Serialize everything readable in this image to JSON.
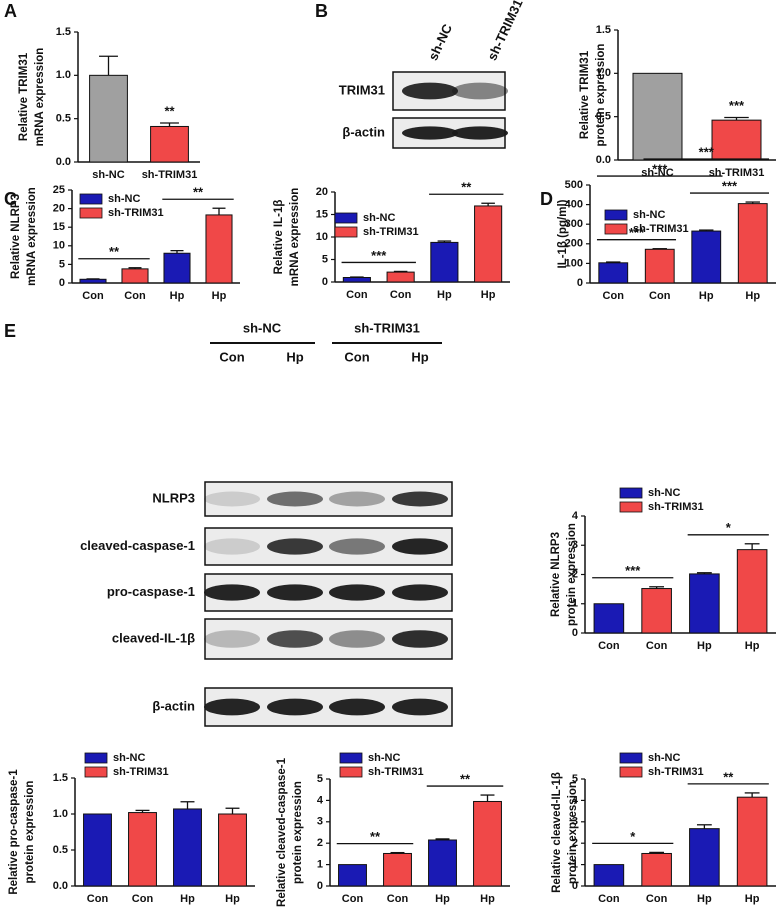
{
  "panel_labels": [
    "A",
    "B",
    "C",
    "D",
    "E"
  ],
  "blot_b": {
    "columns": [
      "sh-NC",
      "sh-TRIM31"
    ],
    "rows": [
      "TRIM31",
      "β-actin"
    ]
  },
  "blot_e": {
    "groups": [
      "sh-NC",
      "sh-TRIM31"
    ],
    "lanes": [
      "Con",
      "Hp",
      "Con",
      "Hp"
    ],
    "rows": [
      "NLRP3",
      "cleaved-caspase-1",
      "pro-caspase-1",
      "cleaved-IL-1β",
      "β-actin"
    ]
  },
  "chart_data": [
    {
      "type": "bar",
      "ylabel": [
        "Relative TRIM31",
        "mRNA expression"
      ],
      "categories": [
        "sh-NC",
        "sh-TRIM31"
      ],
      "values": [
        1.0,
        0.41
      ],
      "errors": [
        0.22,
        0.04
      ],
      "colors": [
        "#a0a0a0",
        "#f04848"
      ],
      "ylim": [
        0,
        1.5
      ],
      "yticks": [
        {
          "value": 0,
          "label": "0.0"
        },
        {
          "value": 0.5,
          "label": "0.5"
        },
        {
          "value": 1,
          "label": "1.0"
        },
        {
          "value": 1.5,
          "label": "1.5"
        }
      ],
      "brackets": [
        {
          "from": 1,
          "to": 1,
          "label": "**"
        }
      ]
    },
    {
      "type": "bar",
      "ylabel": [
        "Relative TRIM31",
        "protein expression"
      ],
      "categories": [
        "sh-NC",
        "sh-TRIM31"
      ],
      "values": [
        1.0,
        0.46
      ],
      "errors": [
        0,
        0.03
      ],
      "colors": [
        "#a0a0a0",
        "#f04848"
      ],
      "ylim": [
        0,
        1.5
      ],
      "yticks": [
        {
          "value": 0,
          "label": "0.0"
        },
        {
          "value": 0.5,
          "label": "0.5"
        },
        {
          "value": 1,
          "label": "1.0"
        },
        {
          "value": 1.5,
          "label": "1.5"
        }
      ],
      "brackets": [
        {
          "from": 1,
          "to": 1,
          "label": "***"
        }
      ]
    },
    {
      "type": "bar",
      "ylabel": [
        "Relative NLRP3",
        "mRNA expression"
      ],
      "categories": [
        "Con",
        "Con",
        "Hp",
        "Hp"
      ],
      "values": [
        1.0,
        3.8,
        8.0,
        18.3
      ],
      "errors": [
        0.1,
        0.3,
        0.7,
        1.8
      ],
      "colors": [
        "#1a1ab4",
        "#f04848",
        "#1a1ab4",
        "#f04848"
      ],
      "legend": [
        {
          "name": "sh-NC",
          "color": "#1a1ab4"
        },
        {
          "name": "sh-TRIM31",
          "color": "#f04848"
        }
      ],
      "ylim": [
        0,
        25
      ],
      "yticks": [
        0,
        5,
        10,
        15,
        20,
        25
      ],
      "brackets": [
        {
          "from": 0,
          "to": 1,
          "label": "**"
        },
        {
          "from": 2,
          "to": 3,
          "label": "**"
        }
      ]
    },
    {
      "type": "bar",
      "ylabel": [
        "Relative IL-1β",
        "mRNA expression"
      ],
      "categories": [
        "Con",
        "Con",
        "Hp",
        "Hp"
      ],
      "values": [
        1.0,
        2.2,
        8.8,
        16.9
      ],
      "errors": [
        0.1,
        0.15,
        0.3,
        0.6
      ],
      "colors": [
        "#1a1ab4",
        "#f04848",
        "#1a1ab4",
        "#f04848"
      ],
      "legend": [
        {
          "name": "sh-NC",
          "color": "#1a1ab4"
        },
        {
          "name": "sh-TRIM31",
          "color": "#f04848"
        }
      ],
      "ylim": [
        0,
        20
      ],
      "yticks": [
        0,
        5,
        10,
        15,
        20
      ],
      "brackets": [
        {
          "from": 0,
          "to": 1,
          "label": "***"
        },
        {
          "from": 2,
          "to": 3,
          "label": "**"
        }
      ]
    },
    {
      "type": "bar",
      "ylabel": [
        "IL-1β (pg/ml)"
      ],
      "categories": [
        "Con",
        "Con",
        "Hp",
        "Hp"
      ],
      "values": [
        103,
        172,
        265,
        405
      ],
      "errors": [
        4,
        3,
        5,
        8
      ],
      "colors": [
        "#1a1ab4",
        "#f04848",
        "#1a1ab4",
        "#f04848"
      ],
      "legend": [
        {
          "name": "sh-NC",
          "color": "#1a1ab4"
        },
        {
          "name": "sh-TRIM31",
          "color": "#f04848"
        }
      ],
      "ylim": [
        0,
        500
      ],
      "yticks": [
        0,
        100,
        200,
        300,
        400,
        500
      ],
      "brackets": [
        {
          "from": 0,
          "to": 1,
          "label": "***"
        },
        {
          "from": 2,
          "to": 3,
          "label": "***"
        },
        {
          "from": 0,
          "to": 2,
          "label": "***"
        },
        {
          "from": 1,
          "to": 3,
          "label": "***"
        }
      ]
    },
    {
      "type": "bar",
      "ylabel": [
        "Relative NLRP3",
        "protein expression"
      ],
      "categories": [
        "Con",
        "Con",
        "Hp",
        "Hp"
      ],
      "values": [
        1.0,
        1.52,
        2.02,
        2.85
      ],
      "errors": [
        0,
        0.06,
        0.04,
        0.2
      ],
      "colors": [
        "#1a1ab4",
        "#f04848",
        "#1a1ab4",
        "#f04848"
      ],
      "legend": [
        {
          "name": "sh-NC",
          "color": "#1a1ab4"
        },
        {
          "name": "sh-TRIM31",
          "color": "#f04848"
        }
      ],
      "ylim": [
        0,
        4
      ],
      "yticks": [
        0,
        1,
        2,
        3,
        4
      ],
      "brackets": [
        {
          "from": 0,
          "to": 1,
          "label": "***"
        },
        {
          "from": 2,
          "to": 3,
          "label": "*"
        }
      ]
    },
    {
      "type": "bar",
      "ylabel": [
        "Relative pro-caspase-1",
        "protein expression"
      ],
      "categories": [
        "Con",
        "Con",
        "Hp",
        "Hp"
      ],
      "values": [
        1.0,
        1.02,
        1.07,
        1.0
      ],
      "errors": [
        0,
        0.03,
        0.1,
        0.08
      ],
      "colors": [
        "#1a1ab4",
        "#f04848",
        "#1a1ab4",
        "#f04848"
      ],
      "legend": [
        {
          "name": "sh-NC",
          "color": "#1a1ab4"
        },
        {
          "name": "sh-TRIM31",
          "color": "#f04848"
        }
      ],
      "ylim": [
        0,
        1.5
      ],
      "yticks": [
        {
          "value": 0,
          "label": "0.0"
        },
        {
          "value": 0.5,
          "label": "0.5"
        },
        {
          "value": 1,
          "label": "1.0"
        },
        {
          "value": 1.5,
          "label": "1.5"
        }
      ],
      "brackets": []
    },
    {
      "type": "bar",
      "ylabel": [
        "Relative cleaved-caspase-1",
        "protein expression"
      ],
      "categories": [
        "Con",
        "Con",
        "Hp",
        "Hp"
      ],
      "values": [
        1.0,
        1.52,
        2.15,
        3.95
      ],
      "errors": [
        0,
        0.04,
        0.05,
        0.3
      ],
      "colors": [
        "#1a1ab4",
        "#f04848",
        "#1a1ab4",
        "#f04848"
      ],
      "legend": [
        {
          "name": "sh-NC",
          "color": "#1a1ab4"
        },
        {
          "name": "sh-TRIM31",
          "color": "#f04848"
        }
      ],
      "ylim": [
        0,
        5
      ],
      "yticks": [
        0,
        1,
        2,
        3,
        4,
        5
      ],
      "brackets": [
        {
          "from": 0,
          "to": 1,
          "label": "**"
        },
        {
          "from": 2,
          "to": 3,
          "label": "**"
        }
      ]
    },
    {
      "type": "bar",
      "ylabel": [
        "Relative cleaved-IL-1β",
        "protein expression"
      ],
      "categories": [
        "Con",
        "Con",
        "Hp",
        "Hp"
      ],
      "values": [
        1.0,
        1.52,
        2.68,
        4.15
      ],
      "errors": [
        0,
        0.05,
        0.18,
        0.2
      ],
      "colors": [
        "#1a1ab4",
        "#f04848",
        "#1a1ab4",
        "#f04848"
      ],
      "legend": [
        {
          "name": "sh-NC",
          "color": "#1a1ab4"
        },
        {
          "name": "sh-TRIM31",
          "color": "#f04848"
        }
      ],
      "ylim": [
        0,
        5
      ],
      "yticks": [
        0,
        1,
        2,
        3,
        4,
        5
      ],
      "brackets": [
        {
          "from": 0,
          "to": 1,
          "label": "*"
        },
        {
          "from": 2,
          "to": 3,
          "label": "**"
        }
      ]
    }
  ]
}
